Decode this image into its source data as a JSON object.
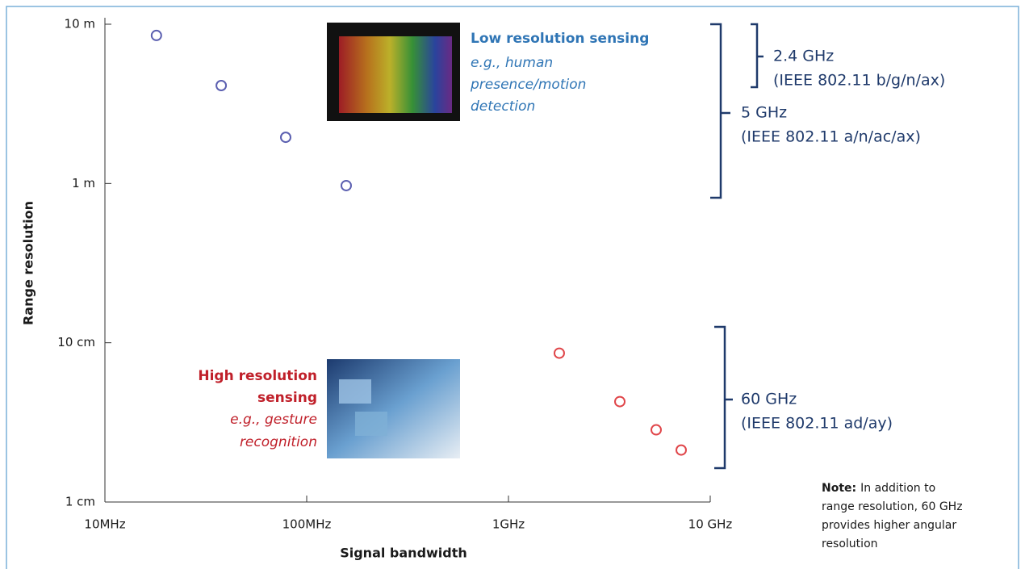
{
  "chart_data": {
    "type": "scatter",
    "x_label": "Signal bandwidth",
    "y_label": "Range resolution",
    "xscale": "log",
    "yscale": "log",
    "xlim": [
      10,
      10000
    ],
    "ylim": [
      0.01,
      10
    ],
    "xticks": [
      {
        "value": 10,
        "label": "10MHz"
      },
      {
        "value": 100,
        "label": "100MHz"
      },
      {
        "value": 1000,
        "label": "1GHz"
      },
      {
        "value": 10000,
        "label": "10 GHz"
      }
    ],
    "yticks": [
      {
        "value": 0.01,
        "label": "1 cm"
      },
      {
        "value": 0.1,
        "label": "10 cm"
      },
      {
        "value": 1,
        "label": "1 m"
      },
      {
        "value": 10,
        "label": "10 m"
      }
    ],
    "series": [
      {
        "name": "Low resolution sensing",
        "color": "#5b5fb0",
        "description": [
          "e.g., human",
          "presence/motion",
          "detection"
        ],
        "x": [
          18,
          37.7,
          78.7,
          157
        ],
        "values": [
          8.5,
          4.12,
          1.95,
          0.97
        ]
      },
      {
        "name": [
          "High resolution",
          "sensing"
        ],
        "color": "#e0464a",
        "description": [
          "e.g., gesture",
          "recognition"
        ],
        "x": [
          1786,
          3565,
          5395,
          7178
        ],
        "values": [
          0.086,
          0.0427,
          0.0284,
          0.0212
        ]
      }
    ],
    "bands": [
      {
        "lines": [
          "2.4 GHz",
          "(IEEE 802.11 b/g/n/ax)"
        ]
      },
      {
        "lines": [
          "5 GHz",
          "(IEEE 802.11 a/n/ac/ax)"
        ]
      },
      {
        "lines": [
          "60 GHz",
          "(IEEE 802.11 ad/ay)"
        ]
      }
    ],
    "note": {
      "label": "Note:",
      "lines": [
        "In addition to",
        "range resolution, 60 GHz",
        "provides higher angular",
        "resolution"
      ]
    }
  }
}
